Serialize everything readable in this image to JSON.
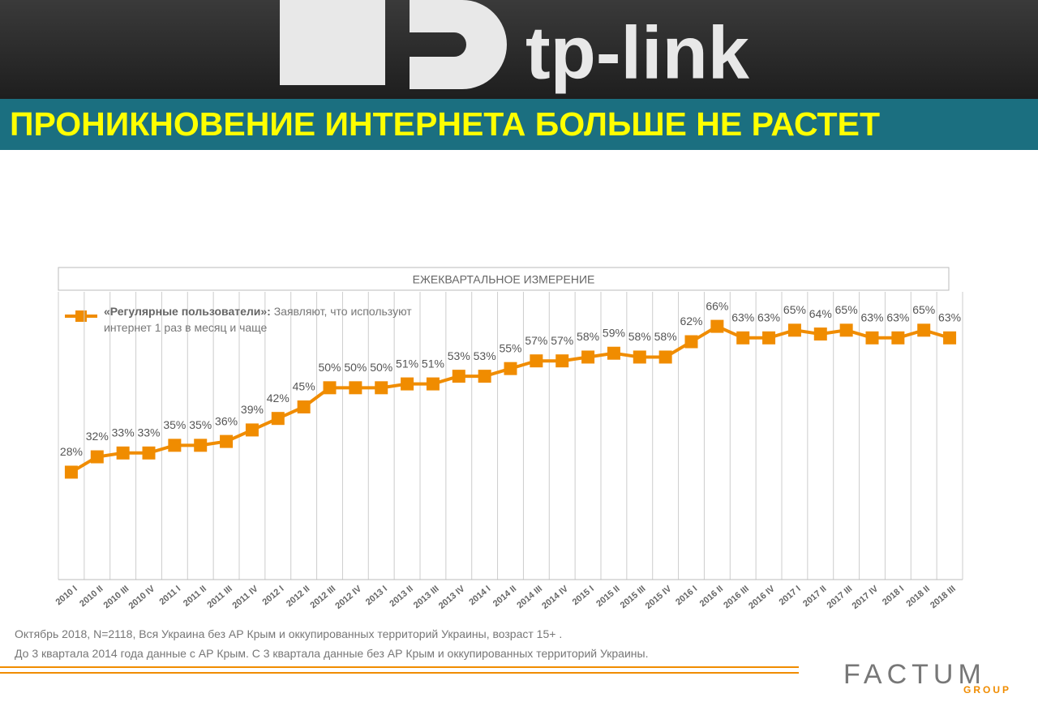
{
  "header": {
    "logo": "tp-link",
    "title": "ПРОНИКНОВЕНИЕ ИНТЕРНЕТА БОЛЬШЕ НЕ РАСТЕТ"
  },
  "chart_data": {
    "type": "line",
    "subtitle": "ЕЖЕКВАРТАЛЬНОЕ ИЗМЕРЕНИЕ",
    "legend_description": "Заявляют, что используют интернет 1 раз в месяц и чаще",
    "categories": [
      "2010 I",
      "2010 II",
      "2010 III",
      "2010 IV",
      "2011 I",
      "2011 II",
      "2011 III",
      "2011 IV",
      "2012 I",
      "2012 II",
      "2012 III",
      "2012 IV",
      "2013 I",
      "2013 II",
      "2013 III",
      "2013 IV",
      "2014 I",
      "2014 II",
      "2014 III",
      "2014 IV",
      "2015 I",
      "2015 II",
      "2015 III",
      "2015 IV",
      "2016 I",
      "2016 II",
      "2016 III",
      "2016 IV",
      "2017 I",
      "2017 II",
      "2017 III",
      "2017 IV",
      "2018 I",
      "2018 II",
      "2018 III"
    ],
    "ylim": [
      0,
      75
    ],
    "series": [
      {
        "name": "«Регулярные пользователи»:",
        "color": "#f08c00",
        "values": [
          28,
          32,
          33,
          33,
          35,
          35,
          36,
          39,
          42,
          45,
          50,
          50,
          50,
          51,
          51,
          53,
          53,
          55,
          57,
          57,
          58,
          59,
          58,
          58,
          62,
          66,
          63,
          63,
          65,
          64,
          65,
          63,
          63,
          65,
          63
        ],
        "value_labels": [
          "28%",
          "32%",
          "33%",
          "33%",
          "35%",
          "35%",
          "36%",
          "39%",
          "42%",
          "45%",
          "50%",
          "50%",
          "50%",
          "51%",
          "51%",
          "53%",
          "53%",
          "55%",
          "57%",
          "57%",
          "58%",
          "59%",
          "58%",
          "58%",
          "62%",
          "66%",
          "63%",
          "63%",
          "65%",
          "64%",
          "65%",
          "63%",
          "63%",
          "65%",
          "63%"
        ]
      }
    ]
  },
  "footnotes": [
    "Октябрь 2018, N=2118, Вся Украина без АР Крым и оккупированных территорий Украины, возраст 15+ .",
    "До 3 квартала 2014 года данные с АР Крым. С 3 квартала данные без АР Крым и оккупированных территорий Украины."
  ],
  "footer": {
    "brand": "FACTUM",
    "sub": "GROUP"
  }
}
